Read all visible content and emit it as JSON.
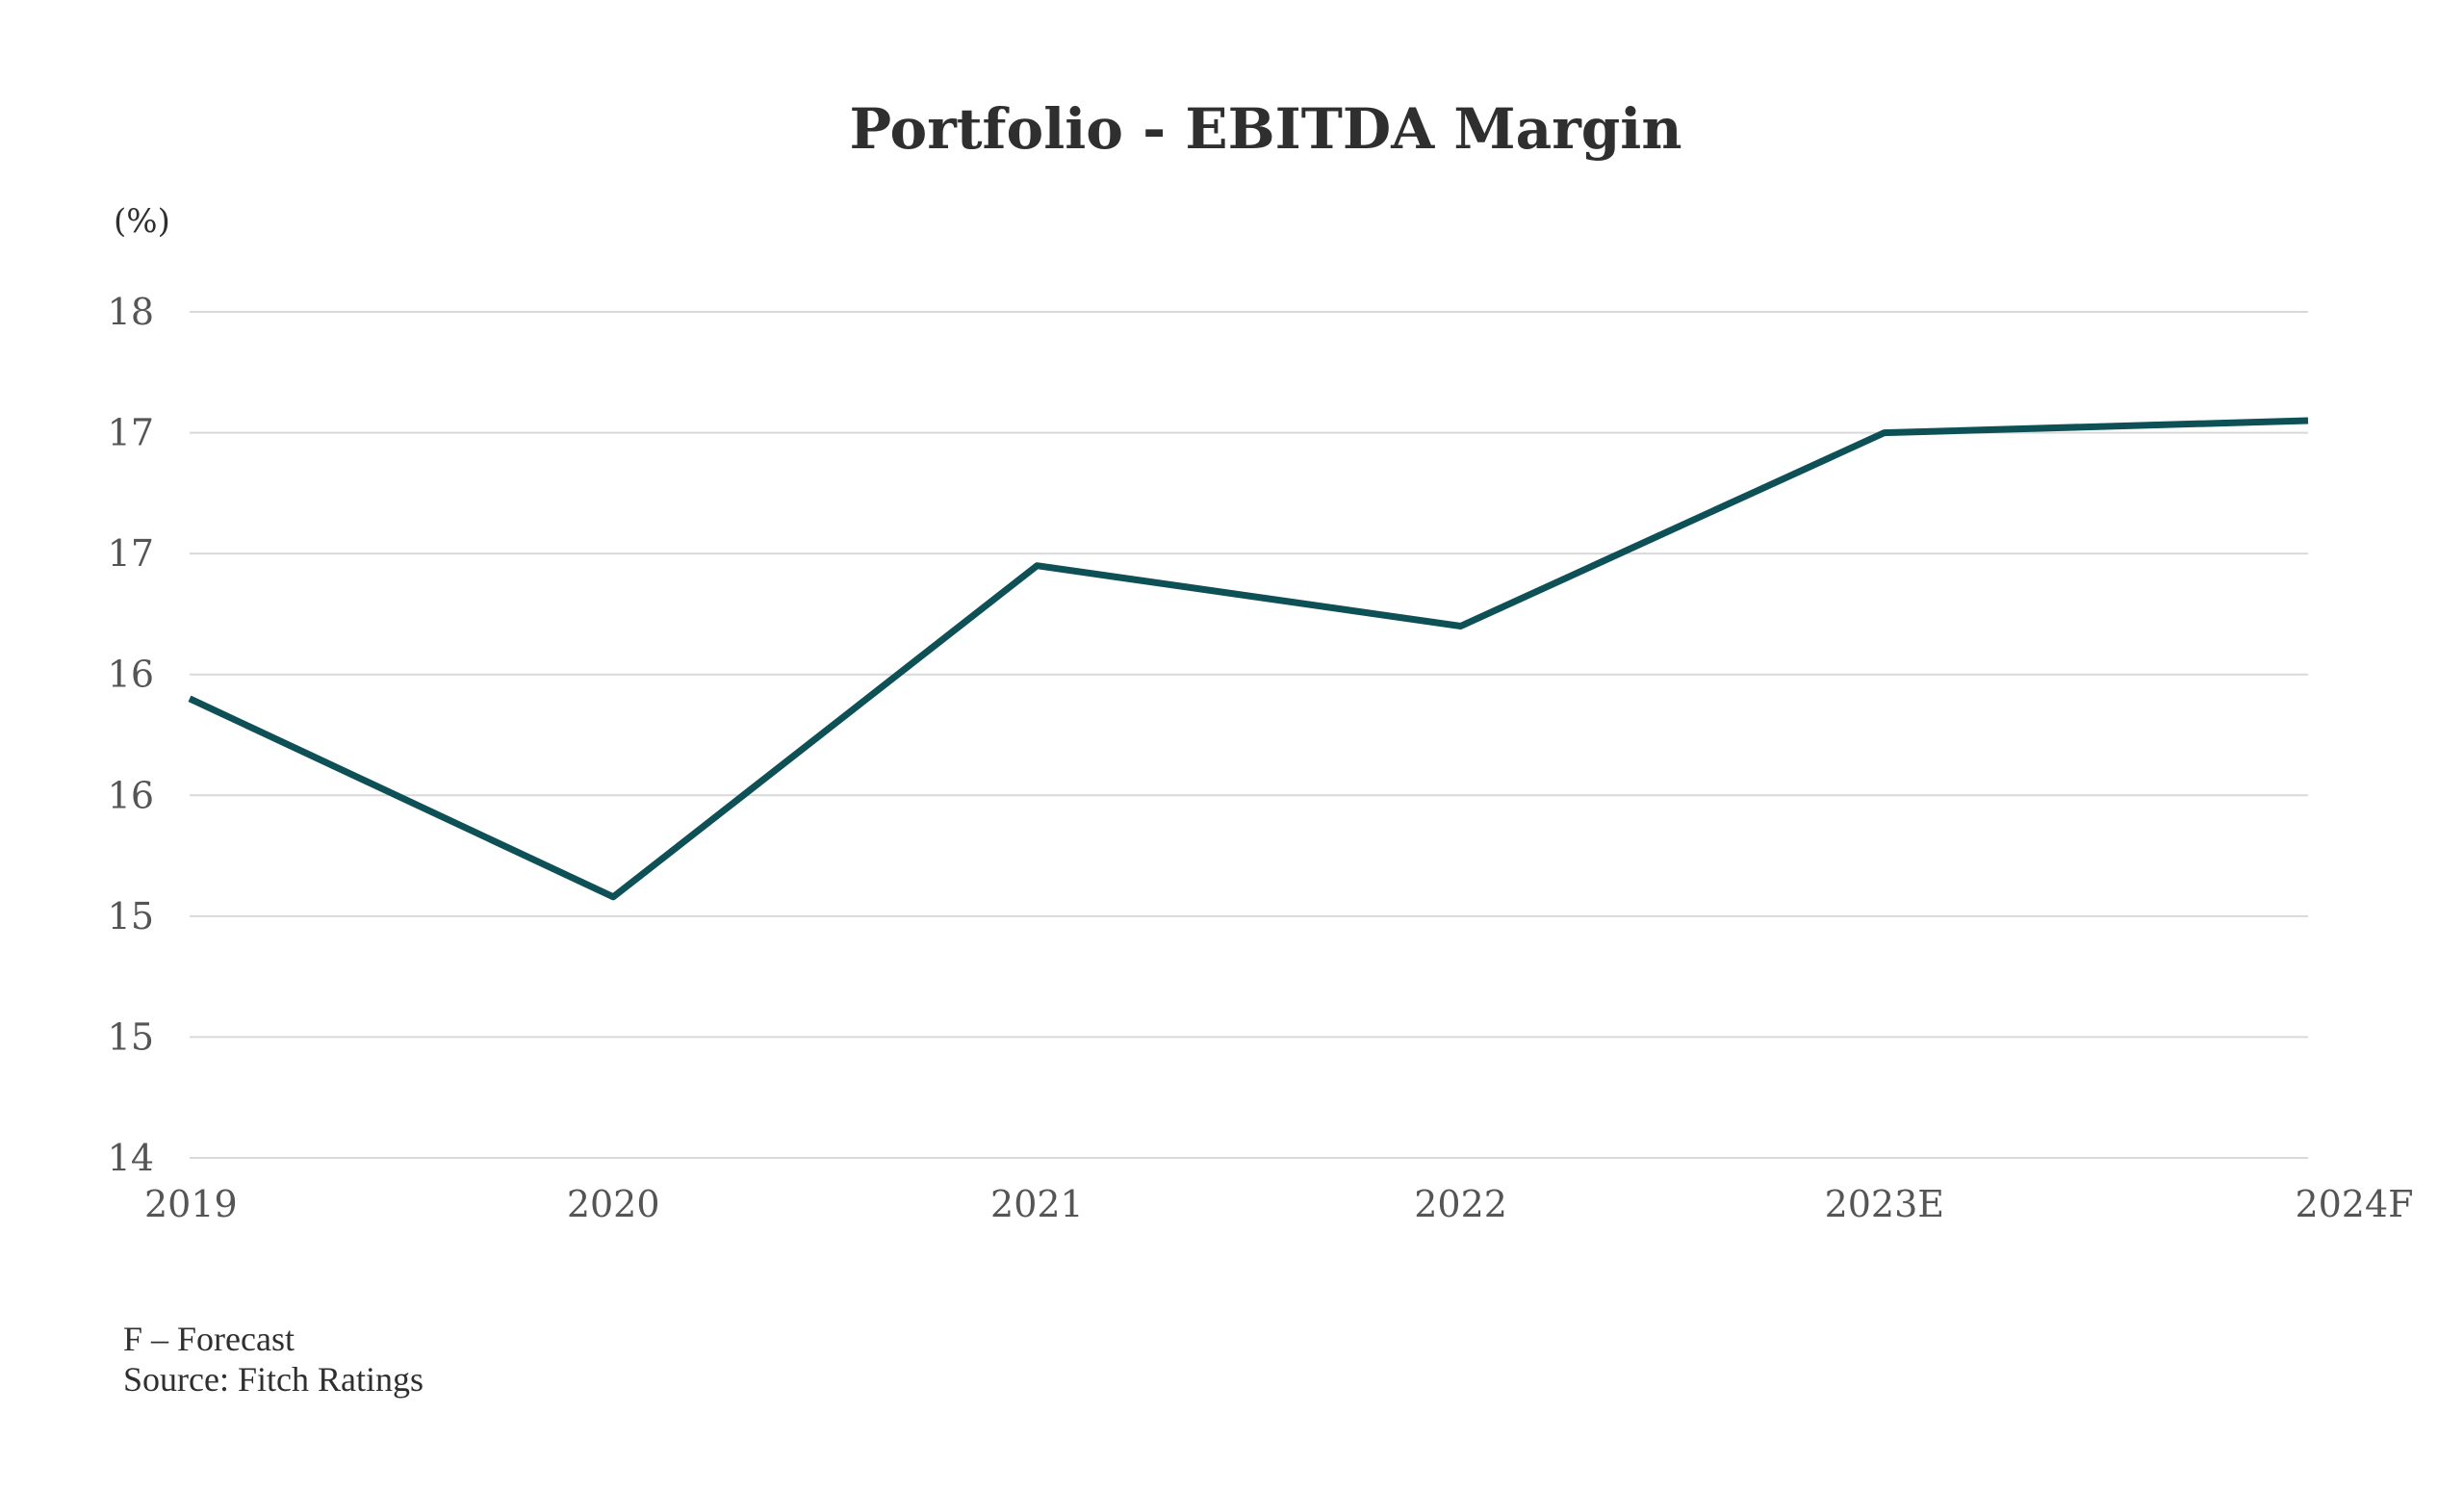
{
  "chart_data": {
    "type": "line",
    "title": "Portfolio - EBITDA Margin",
    "ylabel": "(%)",
    "categories": [
      "2019",
      "2020",
      "2021",
      "2022",
      "2023E",
      "2024F"
    ],
    "series": [
      {
        "values": [
          15.9,
          15.08,
          16.45,
          16.2,
          17.0,
          17.05
        ],
        "color": "#0d5055"
      }
    ],
    "y_ticks": [
      {
        "value": 14.0,
        "label": "14"
      },
      {
        "value": 14.5,
        "label": "15"
      },
      {
        "value": 15.0,
        "label": "15"
      },
      {
        "value": 15.5,
        "label": "16"
      },
      {
        "value": 16.0,
        "label": "16"
      },
      {
        "value": 16.5,
        "label": "17"
      },
      {
        "value": 17.0,
        "label": "17"
      },
      {
        "value": 17.5,
        "label": "18"
      }
    ],
    "ylim": [
      14.0,
      17.5
    ],
    "grid": true,
    "legend": "none"
  },
  "footnotes": {
    "forecast": "F – Forecast",
    "source": "Source: Fitch Ratings"
  }
}
